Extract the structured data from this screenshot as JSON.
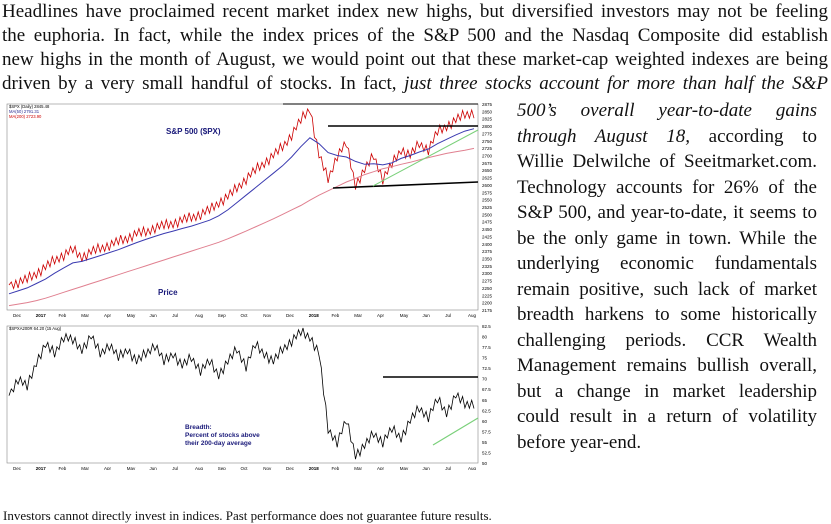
{
  "intro_lines": [
    "Headlines have proclaimed recent market index new highs, but diversified investors may not be feeling",
    "the euphoria.  In fact, while the index prices of the S&P 500 and the Nasdaq Composite did establish",
    "new highs in the month of August, we would point out that these market-cap weighted indexes are being",
    "driven by a very small handful of stocks.  In fact, "
  ],
  "intro_italic_tail": "just three stocks account for more than half the S&P",
  "side_lines": [
    {
      "text": "500’s overall year-to-date gains",
      "italic": true
    },
    {
      "text": "through August 18,",
      "italic": true,
      "tail": " according to"
    },
    {
      "text": "Willie Delwilche of Seeitmarket.com."
    },
    {
      "text": "Technology accounts for 26% of the"
    },
    {
      "text": "S&P 500, and year-to-date, it seems to"
    },
    {
      "text": "be the only game in town.  While the"
    },
    {
      "text": "underlying economic fundamentals"
    },
    {
      "text": "remain positive, such lack of market"
    },
    {
      "text": "breadth harkens to some historically"
    },
    {
      "text": "challenging periods.  CCR Wealth"
    },
    {
      "text": "Management remains bullish overall,"
    },
    {
      "text": "but a change in market leadership"
    },
    {
      "text": "could result in a return of volatility"
    },
    {
      "text": "before year-end.",
      "end": true
    }
  ],
  "footer": "Investors cannot directly invest in indices.  Past performance does not guarantee future results.",
  "chart_data": [
    {
      "type": "line",
      "title": "S&P 500 ($PX)",
      "legend": [
        "$SPX (Daily) 2845.48",
        "MA(50) 2791.31",
        "MA(200) 2723.90"
      ],
      "label": "Price",
      "x_ticks": [
        "Dec",
        "2017",
        "Feb",
        "Mar",
        "Apr",
        "May",
        "Jun",
        "Jul",
        "Aug",
        "Sep",
        "Oct",
        "Nov",
        "Dec",
        "2018",
        "Feb",
        "Mar",
        "Apr",
        "May",
        "Jun",
        "Jul",
        "Aug"
      ],
      "y_ticks": [
        2875,
        2850,
        2825,
        2800,
        2775,
        2750,
        2725,
        2700,
        2675,
        2650,
        2625,
        2600,
        2575,
        2550,
        2525,
        2500,
        2475,
        2450,
        2425,
        2400,
        2375,
        2350,
        2325,
        2300,
        2275,
        2250,
        2225,
        2200,
        2175
      ],
      "y_range": [
        2175,
        2875
      ],
      "series": [
        {
          "name": "$SPX (Daily) 2845.48",
          "color": "#cc0000",
          "values": [
            2260,
            2268,
            2280,
            2300,
            2320,
            2345,
            2362,
            2380,
            2355,
            2372,
            2385,
            2395,
            2408,
            2420,
            2435,
            2440,
            2455,
            2462,
            2470,
            2480,
            2490,
            2500,
            2515,
            2540,
            2560,
            2590,
            2620,
            2650,
            2675,
            2700,
            2730,
            2770,
            2820,
            2860,
            2700,
            2620,
            2700,
            2740,
            2600,
            2650,
            2700,
            2620,
            2670,
            2720,
            2700,
            2740,
            2720,
            2780,
            2800,
            2820,
            2840,
            2845
          ]
        },
        {
          "name": "MA(50) 2791.31",
          "color": "#3a3ab0",
          "values": [
            2230,
            2240,
            2250,
            2265,
            2280,
            2300,
            2318,
            2335,
            2340,
            2350,
            2360,
            2370,
            2380,
            2392,
            2404,
            2415,
            2425,
            2435,
            2443,
            2452,
            2460,
            2470,
            2480,
            2495,
            2515,
            2540,
            2565,
            2590,
            2615,
            2640,
            2665,
            2695,
            2730,
            2760,
            2740,
            2710,
            2700,
            2695,
            2680,
            2670,
            2672,
            2668,
            2675,
            2690,
            2700,
            2712,
            2722,
            2740,
            2755,
            2770,
            2783,
            2791
          ]
        },
        {
          "name": "MA(200) 2723.90",
          "color": "#e08090",
          "values": [
            2190,
            2195,
            2200,
            2207,
            2215,
            2225,
            2235,
            2245,
            2255,
            2265,
            2275,
            2285,
            2295,
            2305,
            2315,
            2325,
            2335,
            2345,
            2355,
            2365,
            2375,
            2385,
            2395,
            2405,
            2417,
            2430,
            2443,
            2457,
            2471,
            2485,
            2500,
            2515,
            2530,
            2548,
            2565,
            2580,
            2595,
            2610,
            2622,
            2635,
            2645,
            2655,
            2662,
            2670,
            2677,
            2685,
            2693,
            2700,
            2707,
            2713,
            2718,
            2724
          ]
        }
      ]
    },
    {
      "type": "line",
      "legend": [
        "$SPXA200R 64.20 (15 Aug)"
      ],
      "label": "Breadth:\nPercent of stocks above\ntheir 200-day average",
      "label_lines": [
        "Breadth:",
        "Percent of stocks above",
        "their 200-day average"
      ],
      "x_ticks": [
        "Dec",
        "2017",
        "Feb",
        "Mar",
        "Apr",
        "May",
        "Jun",
        "Jul",
        "Aug",
        "Sep",
        "Oct",
        "Nov",
        "Dec",
        "2018",
        "Feb",
        "Mar",
        "Apr",
        "May",
        "Jun",
        "Jul",
        "Aug"
      ],
      "y_ticks": [
        82.5,
        80.0,
        77.5,
        75.0,
        72.5,
        70.0,
        67.5,
        65.0,
        62.5,
        60.0,
        57.5,
        55.0,
        52.5,
        50.0
      ],
      "y_range": [
        50,
        82.5
      ],
      "series": [
        {
          "name": "$SPXA200R 64.20 (15 Aug)",
          "color": "#000000",
          "values": [
            66,
            70,
            68,
            74,
            78,
            76,
            80,
            79,
            77,
            80,
            76,
            78,
            75,
            77,
            74,
            76,
            78,
            74,
            76,
            73,
            75,
            72,
            74,
            71,
            74,
            77,
            73,
            78,
            76,
            74,
            77,
            79,
            81,
            80,
            76,
            58,
            55,
            60,
            52,
            54,
            57,
            55,
            58,
            56,
            60,
            63,
            61,
            65,
            62,
            66,
            64,
            64.2
          ]
        }
      ]
    }
  ]
}
